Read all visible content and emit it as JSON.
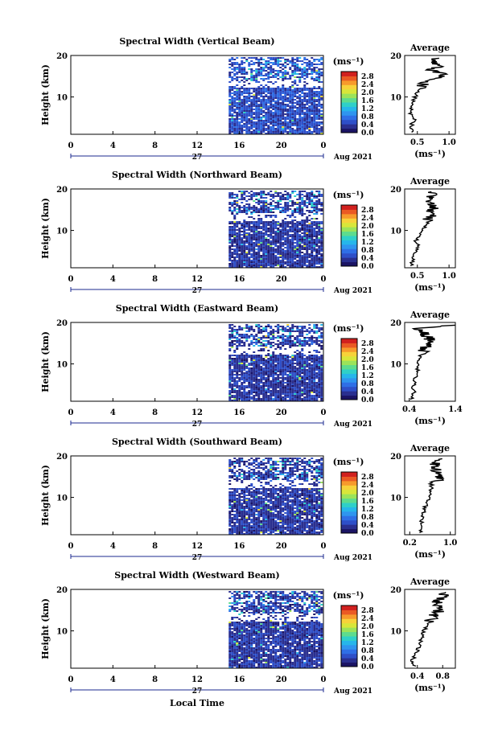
{
  "figure": {
    "date_label": "Aug 2021",
    "day_label": "27",
    "xlabel": "Local Time",
    "ylabel": "Height (km)",
    "avg_title": "Average",
    "avg_xlabel": "(ms⁻¹)",
    "colorbar_unit": "(ms⁻¹)"
  },
  "colorbar": {
    "ticks": [
      "2.8",
      "2.4",
      "2.0",
      "1.6",
      "1.2",
      "0.8",
      "0.4",
      "0.0"
    ],
    "colors": [
      "#1b1464",
      "#2a2f8f",
      "#2e4fc8",
      "#2f6fe6",
      "#2f95ef",
      "#26b6ea",
      "#2fd0c8",
      "#5ddc8e",
      "#9be35a",
      "#d8e63a",
      "#f7d23a",
      "#f79a2c",
      "#ea5a24",
      "#d1201e"
    ]
  },
  "chart_data": [
    {
      "type": "heatmap",
      "title": "Spectral Width (Vertical Beam)",
      "xlabel": "Local Time",
      "ylabel": "Height (km)",
      "xlim": [
        0,
        24
      ],
      "ylim": [
        1,
        20
      ],
      "xticks": [
        "0",
        "4",
        "8",
        "12",
        "16",
        "20",
        "0"
      ],
      "yticks": [
        "20",
        "10"
      ],
      "data_start_hour": 15.0,
      "typical_low": 0.3,
      "typical_high": 0.8,
      "average": {
        "title": "Average",
        "xlim": [
          0.3,
          1.1
        ],
        "xticks": [
          "0.5",
          "1.0"
        ],
        "yticks": [
          "20",
          "10"
        ],
        "height_km": [
          1.5,
          3,
          4.5,
          6,
          7.5,
          9,
          10.5,
          12,
          13.5,
          14.5,
          15.5,
          16.5,
          17.5,
          18.5,
          19.5
        ],
        "value": [
          0.42,
          0.4,
          0.45,
          0.38,
          0.42,
          0.44,
          0.48,
          0.55,
          0.62,
          0.75,
          0.95,
          0.7,
          0.85,
          0.78,
          0.8
        ]
      }
    },
    {
      "type": "heatmap",
      "title": "Spectral Width (Northward Beam)",
      "xlabel": "Local Time",
      "ylabel": "Height (km)",
      "xlim": [
        0,
        24
      ],
      "ylim": [
        1,
        20
      ],
      "xticks": [
        "0",
        "4",
        "8",
        "12",
        "16",
        "20",
        "0"
      ],
      "yticks": [
        "20",
        "10"
      ],
      "data_start_hour": 15.0,
      "typical_low": 0.2,
      "typical_high": 0.6,
      "average": {
        "title": "Average",
        "xlim": [
          0.3,
          1.1
        ],
        "xticks": [
          "0.5",
          "1.0"
        ],
        "yticks": [
          "20",
          "10"
        ],
        "height_km": [
          1.5,
          3,
          4.5,
          6,
          7.5,
          9,
          10.5,
          12,
          13.5,
          14.5,
          15.5,
          16.5,
          17.5,
          18.5,
          19.5
        ],
        "value": [
          0.4,
          0.42,
          0.45,
          0.52,
          0.48,
          0.55,
          0.6,
          0.66,
          0.7,
          0.68,
          0.75,
          0.7,
          0.72,
          0.74,
          0.68
        ]
      }
    },
    {
      "type": "heatmap",
      "title": "Spectral Width (Eastward Beam)",
      "xlabel": "Local Time",
      "ylabel": "Height (km)",
      "xlim": [
        0,
        24
      ],
      "ylim": [
        1,
        20
      ],
      "xticks": [
        "0",
        "4",
        "8",
        "12",
        "16",
        "20",
        "0"
      ],
      "yticks": [
        "20",
        "10"
      ],
      "data_start_hour": 15.0,
      "typical_low": 0.2,
      "typical_high": 0.6,
      "average": {
        "title": "Average",
        "xlim": [
          0.3,
          1.4
        ],
        "xticks": [
          "0.4",
          "1.4"
        ],
        "yticks": [
          "20",
          "10"
        ],
        "height_km": [
          1.5,
          3,
          4.5,
          6,
          7.5,
          9,
          10.5,
          12,
          13.5,
          14.5,
          15.5,
          16.5,
          17.5,
          18.5,
          19.5
        ],
        "value": [
          0.45,
          0.5,
          0.48,
          0.52,
          0.55,
          0.58,
          0.6,
          0.65,
          0.72,
          0.8,
          0.9,
          0.78,
          0.7,
          0.62,
          1.4
        ]
      }
    },
    {
      "type": "heatmap",
      "title": "Spectral Width (Southward Beam)",
      "xlabel": "Local Time",
      "ylabel": "Height (km)",
      "xlim": [
        0,
        24
      ],
      "ylim": [
        1,
        20
      ],
      "xticks": [
        "0",
        "4",
        "8",
        "12",
        "16",
        "20",
        "0"
      ],
      "yticks": [
        "20",
        "10"
      ],
      "data_start_hour": 15.0,
      "typical_low": 0.2,
      "typical_high": 0.6,
      "average": {
        "title": "Average",
        "xlim": [
          0.1,
          1.1
        ],
        "xticks": [
          "0.2",
          "1.0"
        ],
        "yticks": [
          "20",
          "10"
        ],
        "height_km": [
          1.5,
          3,
          4.5,
          6,
          7.5,
          9,
          10.5,
          12,
          13.5,
          14.5,
          15.5,
          16.5,
          17.5,
          18.5,
          19.5
        ],
        "value": [
          0.42,
          0.4,
          0.44,
          0.46,
          0.5,
          0.55,
          0.58,
          0.62,
          0.7,
          0.85,
          0.75,
          0.72,
          0.68,
          0.7,
          0.95
        ]
      }
    },
    {
      "type": "heatmap",
      "title": "Spectral Width (Westward Beam)",
      "xlabel": "Local Time",
      "ylabel": "Height (km)",
      "xlim": [
        0,
        24
      ],
      "ylim": [
        1,
        20
      ],
      "xticks": [
        "0",
        "4",
        "8",
        "12",
        "16",
        "20",
        "0"
      ],
      "yticks": [
        "20",
        "10"
      ],
      "data_start_hour": 15.0,
      "typical_low": 0.2,
      "typical_high": 0.6,
      "average": {
        "title": "Average",
        "xlim": [
          0.2,
          1.0
        ],
        "xticks": [
          "0.4",
          "0.8"
        ],
        "yticks": [
          "20",
          "10"
        ],
        "height_km": [
          1.5,
          3,
          4.5,
          6,
          7.5,
          9,
          10.5,
          12,
          13.5,
          14.5,
          15.5,
          16.5,
          17.5,
          18.5,
          19.5
        ],
        "value": [
          0.35,
          0.32,
          0.38,
          0.42,
          0.45,
          0.48,
          0.52,
          0.58,
          0.65,
          0.72,
          0.8,
          0.7,
          0.75,
          0.85,
          0.78
        ]
      }
    }
  ]
}
